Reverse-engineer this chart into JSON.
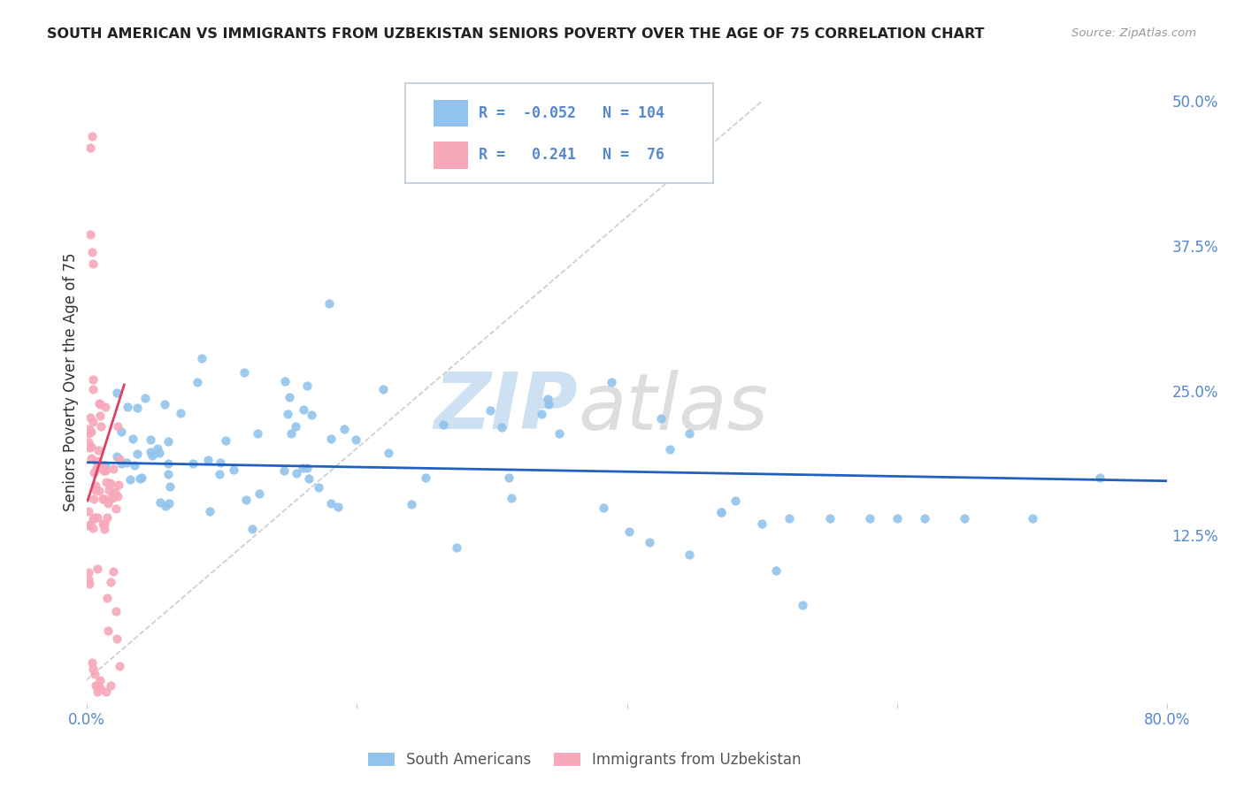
{
  "title": "SOUTH AMERICAN VS IMMIGRANTS FROM UZBEKISTAN SENIORS POVERTY OVER THE AGE OF 75 CORRELATION CHART",
  "source": "Source: ZipAtlas.com",
  "ylabel": "Seniors Poverty Over the Age of 75",
  "xlim": [
    0.0,
    0.8
  ],
  "ylim": [
    -0.02,
    0.535
  ],
  "yticks": [
    0.0,
    0.125,
    0.25,
    0.375,
    0.5
  ],
  "ytick_labels": [
    "",
    "12.5%",
    "25.0%",
    "37.5%",
    "50.0%"
  ],
  "xticks": [
    0.0,
    0.2,
    0.4,
    0.6,
    0.8
  ],
  "xtick_labels": [
    "0.0%",
    "",
    "",
    "",
    "80.0%"
  ],
  "blue_R": -0.052,
  "blue_N": 104,
  "pink_R": 0.241,
  "pink_N": 76,
  "blue_color": "#91C3ED",
  "pink_color": "#F7A8BA",
  "blue_line_color": "#2060C0",
  "pink_line_color": "#E04060",
  "diagonal_color": "#CCCCCC",
  "background_color": "#FFFFFF",
  "grid_color": "#DDDDDD",
  "title_color": "#222222",
  "source_color": "#999999",
  "axis_label_color": "#333333",
  "tick_color": "#5588CC",
  "legend_border_color": "#BBCCDD",
  "blue_trend_y_start": 0.188,
  "blue_trend_y_end": 0.172,
  "pink_trend_x_start": 0.001,
  "pink_trend_x_end": 0.028,
  "pink_trend_y_start": 0.155,
  "pink_trend_y_end": 0.255
}
